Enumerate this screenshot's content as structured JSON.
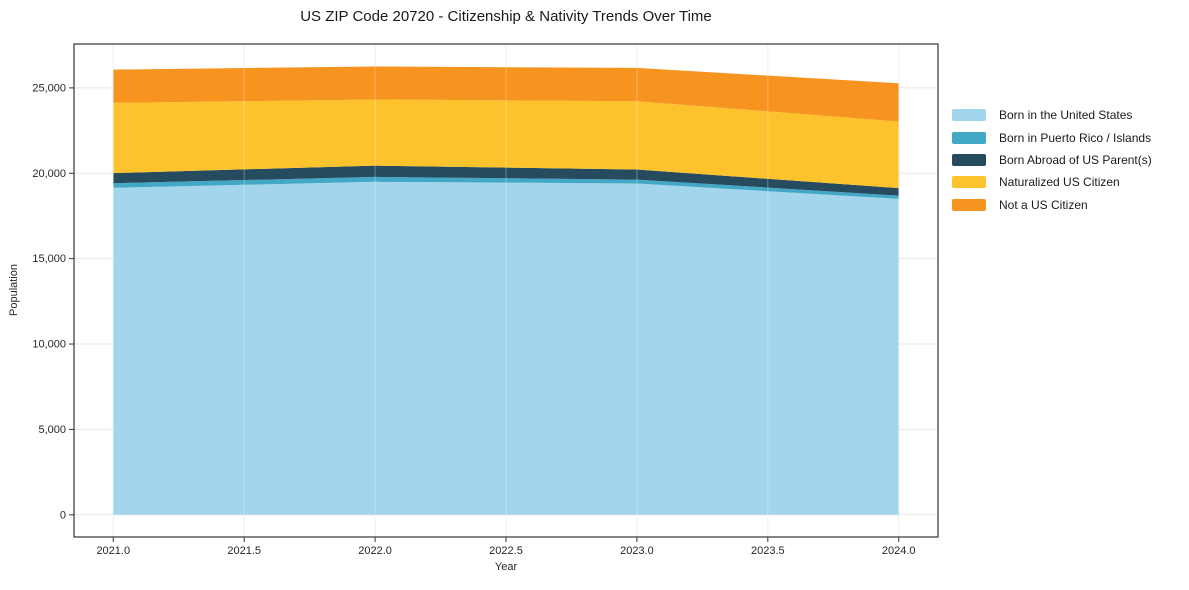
{
  "chart_data": {
    "type": "area",
    "stacked": true,
    "title": "US ZIP Code 20720 - Citizenship & Nativity Trends Over Time",
    "xlabel": "Year",
    "ylabel": "Population",
    "x": [
      2021,
      2022,
      2023,
      2024
    ],
    "series": [
      {
        "name": "Born in the United States",
        "color": "#a3d5ec",
        "values": [
          19150,
          19500,
          19400,
          18500
        ]
      },
      {
        "name": "Born in Puerto Rico / Islands",
        "color": "#42a8c5",
        "values": [
          270,
          290,
          230,
          190
        ]
      },
      {
        "name": "Born Abroad of US Parent(s)",
        "color": "#274b5e",
        "values": [
          590,
          660,
          590,
          440
        ]
      },
      {
        "name": "Naturalized US Citizen",
        "color": "#fdc32c",
        "values": [
          4110,
          3870,
          4000,
          3900
        ]
      },
      {
        "name": "Not a US Citizen",
        "color": "#f7941f",
        "values": [
          1950,
          1930,
          1950,
          2240
        ]
      }
    ],
    "totals": [
      26070,
      26250,
      26170,
      25270
    ],
    "xlim": [
      2020.85,
      2024.15
    ],
    "ylim": [
      -1300,
      27570
    ],
    "xticks": {
      "values": [
        2021.0,
        2021.5,
        2022.0,
        2022.5,
        2023.0,
        2023.5,
        2024.0
      ],
      "labels": [
        "2021.0",
        "2021.5",
        "2022.0",
        "2022.5",
        "2023.0",
        "2023.5",
        "2024.0"
      ]
    },
    "yticks": {
      "values": [
        0,
        5000,
        10000,
        15000,
        20000,
        25000
      ],
      "labels": [
        "0",
        "5,000",
        "10,000",
        "15,000",
        "20,000",
        "25,000"
      ]
    },
    "grid": true,
    "grid_color": "#e8e8e8",
    "axis_color": "#333333",
    "background_color": "#ffffff",
    "legend_position": "right"
  }
}
